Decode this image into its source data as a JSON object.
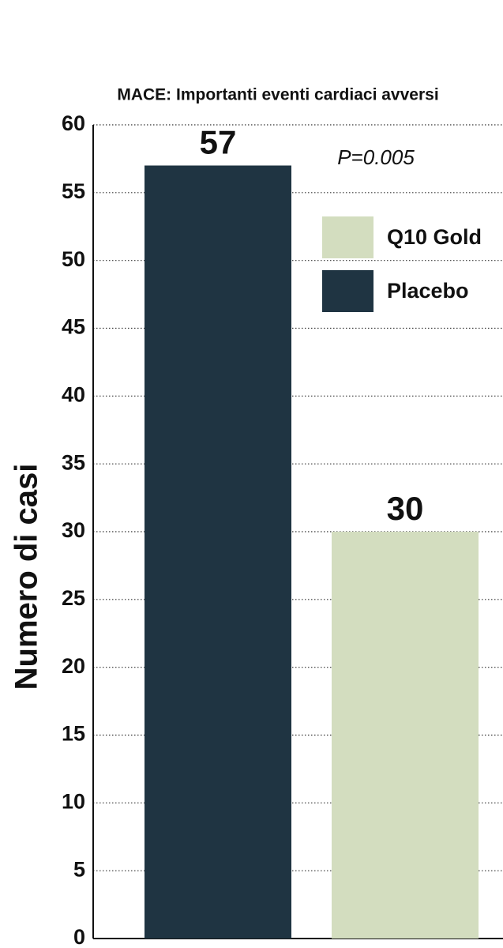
{
  "chart_data": {
    "type": "bar",
    "title": "MACE: Importanti eventi cardiaci avversi",
    "y_label": "Numero di casi",
    "annotation": "P=0.005",
    "categories": [
      null,
      null
    ],
    "series": [
      {
        "name": "Q10 Gold",
        "color": "#d3ddbf",
        "values": [
          null,
          30
        ]
      },
      {
        "name": "Placebo",
        "color": "#1f3442",
        "values": [
          57,
          null
        ]
      }
    ],
    "ylim": [
      0,
      60
    ],
    "yticks": [
      0,
      5,
      10,
      15,
      20,
      25,
      30,
      35,
      40,
      45,
      50,
      55,
      60
    ],
    "grid": true,
    "legend": "top-right"
  }
}
